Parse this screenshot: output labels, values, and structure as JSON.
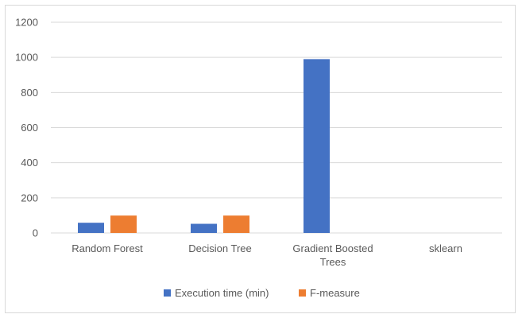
{
  "chart_data": {
    "type": "bar",
    "title": "",
    "xlabel": "",
    "ylabel": "",
    "categories": [
      [
        "Random Forest"
      ],
      [
        "Decision Tree"
      ],
      [
        "Gradient Boosted",
        "Trees"
      ],
      [
        "sklearn"
      ]
    ],
    "series": [
      {
        "name": "Execution time (min)",
        "color": "#4472c4",
        "values": [
          58,
          52,
          990,
          null
        ]
      },
      {
        "name": "F-measure",
        "color": "#ed7d31",
        "values": [
          99,
          99,
          null,
          null
        ]
      }
    ],
    "ylim": [
      0,
      1200
    ],
    "yticks": [
      0,
      200,
      400,
      600,
      800,
      1000,
      1200
    ],
    "grid": true,
    "legend": "bottom"
  }
}
